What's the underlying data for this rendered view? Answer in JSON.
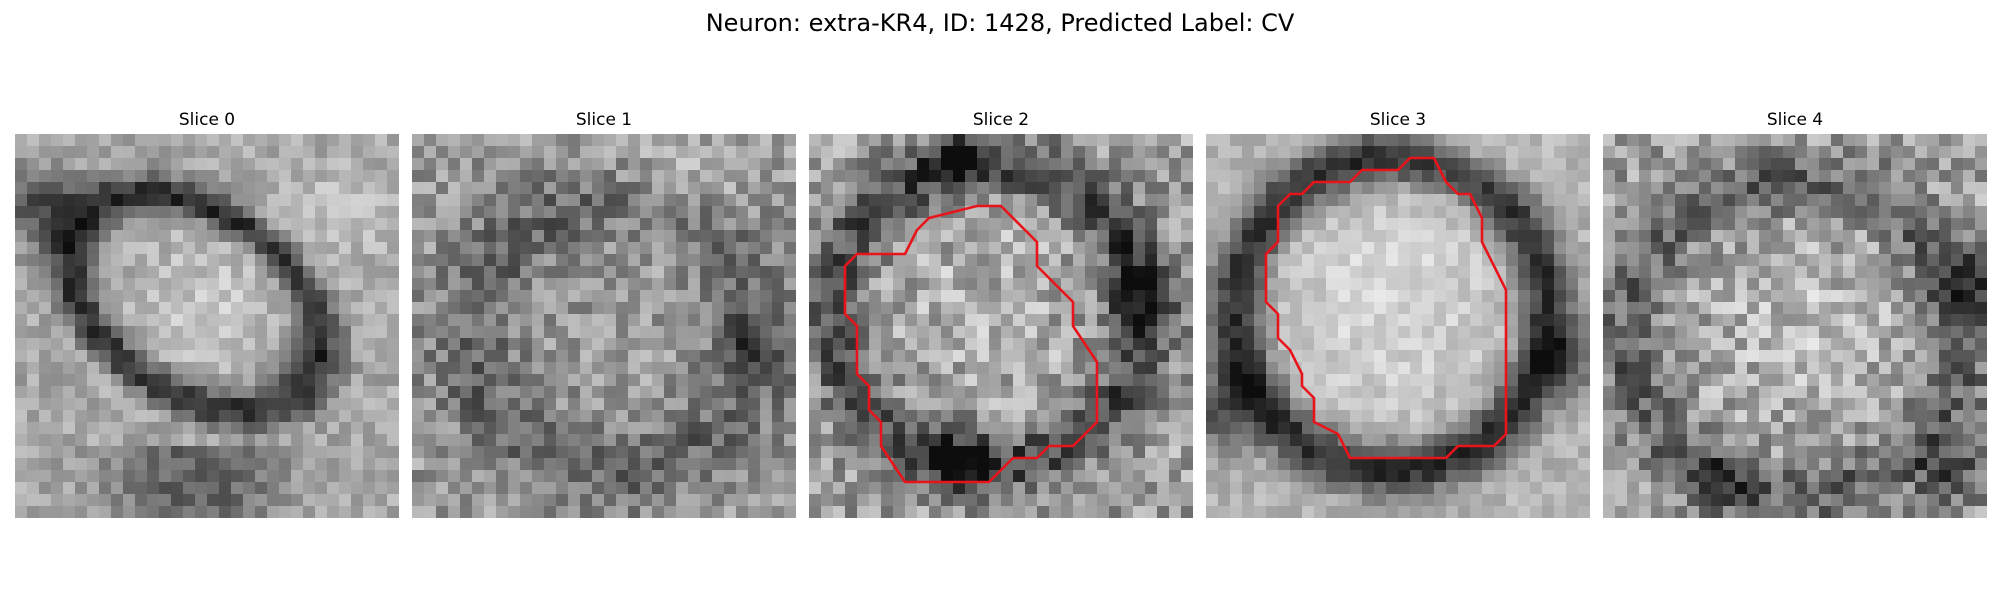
{
  "figure": {
    "title": "Neuron: extra-KR4, ID: 1428, Predicted Label: CV"
  },
  "colors": {
    "background": "#ffffff",
    "contour": "#e8141c",
    "colormap": "grayscale"
  },
  "panels": [
    {
      "title": "Slice 0",
      "has_contour": false
    },
    {
      "title": "Slice 1",
      "has_contour": false
    },
    {
      "title": "Slice 2",
      "has_contour": true
    },
    {
      "title": "Slice 3",
      "has_contour": true
    },
    {
      "title": "Slice 4",
      "has_contour": false
    }
  ]
}
